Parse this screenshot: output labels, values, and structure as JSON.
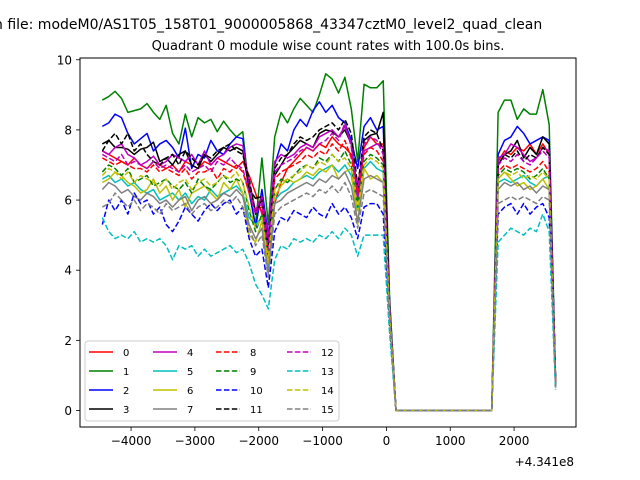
{
  "header_line": "n file: modeM0/AS1T05_158T01_9000005868_43347cztM0_level2_quad_clean",
  "chart_data": {
    "type": "line",
    "title": "Quadrant 0 module wise count rates with 100.0s bins.",
    "xlabel": "",
    "ylabel": "",
    "x_offset_label": "+4.341e8",
    "xlim": [
      -4800,
      2970
    ],
    "ylim": [
      -0.47,
      10.05
    ],
    "xticks": [
      -4000,
      -3000,
      -2000,
      -1000,
      0,
      1000,
      2000
    ],
    "xtick_labels": [
      "−4000",
      "−3000",
      "−2000",
      "−1000",
      "0",
      "1000",
      "2000"
    ],
    "yticks": [
      0,
      2,
      4,
      6,
      8,
      10
    ],
    "ytick_labels": [
      "0",
      "2",
      "4",
      "6",
      "8",
      "10"
    ],
    "grid": false,
    "legend_placement": "lower-left",
    "legend_columns": 4,
    "x": [
      -4450,
      -4350,
      -4250,
      -4150,
      -4050,
      -3950,
      -3850,
      -3750,
      -3650,
      -3550,
      -3450,
      -3350,
      -3250,
      -3150,
      -3050,
      -2950,
      -2850,
      -2750,
      -2650,
      -2550,
      -2450,
      -2350,
      -2250,
      -2150,
      -2050,
      -1950,
      -1850,
      -1750,
      -1650,
      -1550,
      -1450,
      -1350,
      -1250,
      -1150,
      -1050,
      -950,
      -850,
      -750,
      -650,
      -550,
      -450,
      -350,
      -250,
      -150,
      -50,
      50,
      150,
      1650,
      1750,
      1850,
      1950,
      2050,
      2150,
      2250,
      2350,
      2450,
      2550,
      2650
    ],
    "series": [
      {
        "name": "0",
        "color": "#ff0000",
        "dash": "solid",
        "values": [
          7.4,
          7.3,
          7.2,
          7.1,
          7.0,
          7.2,
          7.0,
          6.9,
          7.1,
          7.0,
          6.9,
          7.0,
          6.8,
          7.1,
          7.0,
          6.9,
          7.1,
          7.0,
          7.2,
          7.1,
          7.0,
          6.9,
          7.1,
          6.7,
          6.2,
          5.6,
          4.7,
          5.9,
          6.5,
          6.9,
          7.1,
          7.3,
          7.5,
          7.4,
          7.6,
          7.5,
          7.8,
          7.6,
          7.5,
          7.3,
          6.4,
          7.5,
          7.8,
          7.6,
          7.6,
          3.0,
          0.0,
          0.0,
          7.1,
          7.4,
          7.3,
          7.5,
          7.4,
          7.6,
          7.3,
          7.6,
          7.3,
          0.8
        ]
      },
      {
        "name": "1",
        "color": "#008000",
        "dash": "solid",
        "values": [
          8.85,
          8.95,
          9.1,
          8.9,
          8.5,
          8.55,
          8.6,
          8.75,
          8.5,
          8.3,
          8.7,
          7.9,
          7.6,
          8.45,
          7.8,
          8.35,
          8.2,
          8.3,
          7.95,
          8.25,
          8.0,
          7.8,
          7.95,
          6.2,
          5.3,
          7.2,
          5.3,
          7.8,
          8.5,
          8.2,
          8.6,
          8.9,
          8.7,
          8.5,
          9.0,
          9.6,
          9.45,
          9.05,
          9.5,
          8.6,
          7.1,
          9.3,
          9.2,
          9.2,
          9.4,
          3.2,
          0.0,
          0.0,
          8.5,
          8.85,
          8.85,
          8.3,
          8.6,
          8.45,
          8.45,
          9.15,
          8.15,
          0.9
        ]
      },
      {
        "name": "2",
        "color": "#0000ff",
        "dash": "solid",
        "values": [
          8.1,
          8.2,
          8.45,
          8.35,
          7.9,
          7.6,
          7.75,
          7.9,
          7.4,
          7.6,
          7.7,
          7.5,
          7.2,
          8.05,
          6.9,
          7.3,
          7.2,
          7.7,
          7.4,
          7.3,
          7.6,
          7.8,
          7.75,
          6.3,
          5.2,
          6.3,
          5.0,
          7.0,
          7.6,
          7.4,
          8.0,
          8.3,
          8.1,
          8.55,
          8.8,
          8.5,
          8.7,
          8.35,
          8.2,
          7.7,
          6.9,
          8.1,
          8.35,
          8.0,
          8.1,
          3.1,
          0.0,
          0.0,
          7.3,
          7.7,
          7.8,
          8.1,
          7.9,
          7.6,
          7.7,
          7.8,
          7.7,
          0.85
        ]
      },
      {
        "name": "3",
        "color": "#000000",
        "dash": "solid",
        "values": [
          7.6,
          7.7,
          7.5,
          7.5,
          7.45,
          7.3,
          7.45,
          7.5,
          7.65,
          7.1,
          7.2,
          7.0,
          7.3,
          7.4,
          7.0,
          6.9,
          7.3,
          7.1,
          7.3,
          7.5,
          7.4,
          7.5,
          7.4,
          6.3,
          6.05,
          6.1,
          4.8,
          6.7,
          7.0,
          7.3,
          7.5,
          7.7,
          7.6,
          7.5,
          7.9,
          8.0,
          7.95,
          7.8,
          8.0,
          7.6,
          6.2,
          7.7,
          7.85,
          7.9,
          8.5,
          3.0,
          0.0,
          0.0,
          7.0,
          7.3,
          7.4,
          7.7,
          7.2,
          7.5,
          7.3,
          7.8,
          7.6,
          0.8
        ]
      },
      {
        "name": "4",
        "color": "#bf00bf",
        "dash": "solid",
        "values": [
          7.4,
          7.3,
          7.5,
          7.6,
          7.3,
          7.2,
          7.0,
          7.1,
          7.25,
          7.0,
          7.1,
          7.3,
          7.2,
          7.1,
          7.3,
          7.0,
          7.4,
          7.0,
          7.2,
          7.3,
          7.5,
          7.6,
          7.55,
          6.5,
          5.7,
          6.1,
          4.9,
          7.1,
          7.3,
          7.2,
          7.3,
          7.5,
          7.6,
          7.5,
          7.8,
          7.9,
          8.0,
          7.8,
          8.1,
          7.6,
          6.0,
          7.4,
          7.5,
          7.6,
          7.5,
          2.9,
          0.0,
          0.0,
          7.2,
          7.3,
          7.6,
          7.5,
          7.3,
          7.1,
          7.2,
          7.5,
          7.4,
          0.8
        ]
      },
      {
        "name": "5",
        "color": "#00bfbf",
        "dash": "solid",
        "values": [
          6.6,
          6.7,
          6.5,
          6.6,
          6.4,
          6.5,
          6.3,
          6.2,
          6.3,
          6.0,
          6.1,
          6.2,
          6.0,
          6.2,
          5.9,
          6.1,
          6.0,
          6.3,
          6.1,
          6.2,
          6.3,
          6.4,
          6.2,
          5.5,
          5.3,
          5.5,
          4.1,
          6.0,
          6.2,
          6.3,
          6.5,
          6.6,
          6.7,
          6.6,
          6.8,
          6.9,
          7.0,
          6.8,
          7.0,
          6.7,
          5.7,
          6.9,
          7.1,
          6.9,
          6.8,
          2.8,
          0.0,
          0.0,
          6.5,
          6.6,
          6.5,
          6.6,
          6.7,
          6.5,
          6.4,
          6.6,
          6.7,
          0.75
        ]
      },
      {
        "name": "6",
        "color": "#bfbf00",
        "dash": "solid",
        "values": [
          6.5,
          6.6,
          6.8,
          6.7,
          6.5,
          6.4,
          6.2,
          6.3,
          6.6,
          6.2,
          6.4,
          6.0,
          6.3,
          5.8,
          6.2,
          6.3,
          6.4,
          6.2,
          6.0,
          6.5,
          6.3,
          6.6,
          6.2,
          5.0,
          4.8,
          5.4,
          4.2,
          6.1,
          6.4,
          6.6,
          6.5,
          6.6,
          6.8,
          6.7,
          6.9,
          6.8,
          7.0,
          6.6,
          6.8,
          6.9,
          5.3,
          6.9,
          6.6,
          6.7,
          6.5,
          2.8,
          0.0,
          0.0,
          6.6,
          6.8,
          6.6,
          6.4,
          6.5,
          6.3,
          6.4,
          6.6,
          6.3,
          0.7
        ]
      },
      {
        "name": "7",
        "color": "#808080",
        "dash": "solid",
        "values": [
          6.3,
          6.5,
          6.4,
          6.2,
          6.3,
          6.1,
          6.0,
          6.2,
          6.1,
          5.9,
          6.0,
          5.8,
          6.0,
          6.1,
          5.7,
          6.0,
          6.1,
          5.9,
          6.0,
          6.2,
          6.1,
          6.3,
          6.1,
          5.3,
          4.9,
          5.2,
          3.9,
          5.9,
          6.0,
          6.2,
          6.3,
          6.4,
          6.5,
          6.4,
          6.6,
          6.5,
          6.7,
          6.6,
          6.8,
          6.4,
          5.4,
          6.6,
          6.7,
          6.6,
          6.5,
          2.7,
          0.0,
          0.0,
          6.3,
          6.5,
          6.4,
          6.5,
          6.3,
          6.4,
          6.2,
          6.4,
          6.3,
          0.7
        ]
      },
      {
        "name": "8",
        "color": "#ff0000",
        "dash": "dash",
        "values": [
          7.2,
          7.1,
          7.0,
          7.1,
          7.0,
          6.9,
          6.9,
          6.8,
          7.0,
          6.8,
          6.9,
          6.8,
          6.7,
          6.9,
          6.6,
          6.8,
          6.8,
          6.9,
          6.6,
          6.9,
          6.8,
          7.0,
          6.8,
          6.2,
          5.7,
          5.8,
          4.3,
          6.6,
          6.8,
          6.9,
          7.0,
          7.1,
          7.3,
          7.2,
          7.4,
          7.3,
          7.6,
          7.4,
          7.7,
          7.2,
          6.2,
          7.3,
          7.5,
          7.4,
          7.1,
          2.9,
          0.0,
          0.0,
          6.8,
          7.0,
          6.9,
          7.0,
          6.9,
          6.8,
          6.9,
          7.1,
          6.8,
          0.75
        ]
      },
      {
        "name": "9",
        "color": "#008000",
        "dash": "dash",
        "values": [
          6.8,
          7.0,
          6.9,
          6.7,
          6.9,
          6.5,
          6.6,
          6.7,
          6.4,
          6.5,
          6.6,
          6.4,
          6.3,
          6.5,
          6.2,
          6.6,
          6.4,
          6.3,
          6.5,
          6.7,
          6.5,
          6.6,
          6.5,
          5.7,
          5.1,
          5.6,
          4.4,
          6.3,
          6.6,
          6.5,
          6.7,
          6.9,
          7.0,
          6.9,
          7.2,
          7.1,
          7.3,
          7.1,
          7.4,
          7.0,
          5.8,
          7.1,
          7.3,
          7.2,
          7.0,
          2.9,
          0.0,
          0.0,
          6.7,
          6.9,
          6.8,
          6.9,
          6.8,
          6.6,
          6.7,
          6.9,
          6.6,
          0.75
        ]
      },
      {
        "name": "10",
        "color": "#0000ff",
        "dash": "dash",
        "values": [
          5.3,
          6.0,
          5.7,
          6.0,
          5.6,
          6.2,
          5.9,
          6.0,
          5.6,
          5.8,
          5.3,
          5.1,
          5.4,
          5.8,
          5.6,
          5.4,
          5.7,
          5.9,
          5.7,
          5.9,
          6.0,
          5.6,
          5.8,
          4.9,
          4.4,
          4.6,
          3.5,
          5.1,
          5.5,
          5.4,
          5.7,
          5.6,
          5.5,
          5.8,
          5.6,
          5.5,
          5.9,
          5.6,
          5.8,
          5.5,
          4.9,
          5.8,
          5.9,
          5.9,
          5.6,
          2.4,
          0.0,
          0.0,
          5.6,
          5.8,
          5.9,
          5.6,
          5.9,
          5.6,
          5.8,
          5.9,
          5.5,
          0.65
        ]
      },
      {
        "name": "11",
        "color": "#000000",
        "dash": "dash",
        "values": [
          7.4,
          7.7,
          7.9,
          7.6,
          7.9,
          7.4,
          7.6,
          7.3,
          7.1,
          7.0,
          7.2,
          7.3,
          7.0,
          7.4,
          7.2,
          7.0,
          7.3,
          7.2,
          7.4,
          7.5,
          7.6,
          7.4,
          7.3,
          6.6,
          5.6,
          6.0,
          4.6,
          6.9,
          7.2,
          7.3,
          7.6,
          7.8,
          7.7,
          7.8,
          8.0,
          8.1,
          8.2,
          8.0,
          8.3,
          7.9,
          6.4,
          7.8,
          8.0,
          7.9,
          7.4,
          2.9,
          0.0,
          0.0,
          7.0,
          7.3,
          7.2,
          7.4,
          7.1,
          7.3,
          7.2,
          7.5,
          7.3,
          0.8
        ]
      },
      {
        "name": "12",
        "color": "#bf00bf",
        "dash": "dash",
        "values": [
          7.3,
          7.2,
          7.1,
          7.3,
          7.0,
          7.1,
          7.0,
          6.9,
          7.1,
          6.9,
          7.0,
          6.9,
          6.8,
          7.0,
          6.8,
          6.9,
          7.0,
          6.8,
          7.1,
          7.0,
          7.2,
          7.0,
          6.9,
          6.2,
          5.6,
          5.9,
          4.6,
          6.8,
          7.0,
          7.1,
          7.2,
          7.4,
          7.5,
          7.4,
          7.6,
          7.7,
          7.9,
          7.7,
          8.2,
          7.5,
          6.3,
          7.6,
          7.8,
          7.7,
          7.3,
          2.9,
          0.0,
          0.0,
          7.0,
          7.2,
          7.1,
          7.3,
          7.1,
          7.0,
          7.2,
          7.4,
          7.2,
          0.8
        ]
      },
      {
        "name": "13",
        "color": "#00bfbf",
        "dash": "dash",
        "values": [
          5.5,
          5.1,
          4.9,
          5.0,
          4.9,
          5.1,
          4.8,
          4.9,
          4.8,
          4.9,
          4.7,
          4.3,
          4.7,
          4.6,
          4.7,
          4.4,
          4.6,
          4.4,
          4.5,
          4.6,
          4.7,
          4.5,
          4.6,
          4.2,
          3.6,
          3.3,
          2.9,
          4.3,
          4.7,
          4.6,
          4.9,
          4.8,
          4.9,
          4.8,
          5.0,
          4.9,
          5.1,
          4.9,
          5.2,
          5.0,
          4.4,
          5.0,
          5.0,
          5.0,
          5.0,
          2.2,
          0.0,
          0.0,
          4.8,
          5.0,
          5.2,
          5.1,
          5.0,
          5.2,
          5.1,
          5.6,
          5.1,
          0.6
        ]
      },
      {
        "name": "14",
        "color": "#bfbf00",
        "dash": "dash",
        "values": [
          6.7,
          6.9,
          6.8,
          6.6,
          6.8,
          6.5,
          6.7,
          6.6,
          6.5,
          6.4,
          6.6,
          6.3,
          6.5,
          6.6,
          6.3,
          6.5,
          6.6,
          6.4,
          6.5,
          6.7,
          6.6,
          6.8,
          6.5,
          5.8,
          5.2,
          5.5,
          4.3,
          6.3,
          6.5,
          6.6,
          6.7,
          6.8,
          7.0,
          6.9,
          7.1,
          7.0,
          7.3,
          7.1,
          7.2,
          6.9,
          5.7,
          7.0,
          7.2,
          7.1,
          6.9,
          2.8,
          0.0,
          0.0,
          6.6,
          6.8,
          6.7,
          6.8,
          6.6,
          6.7,
          6.6,
          6.8,
          6.6,
          0.75
        ]
      },
      {
        "name": "15",
        "color": "#808080",
        "dash": "dash",
        "values": [
          5.8,
          5.9,
          6.2,
          6.0,
          5.8,
          6.0,
          5.7,
          5.9,
          5.8,
          5.6,
          5.9,
          5.7,
          5.8,
          5.9,
          5.6,
          5.8,
          5.9,
          5.7,
          5.8,
          6.0,
          5.9,
          6.1,
          5.8,
          5.2,
          4.7,
          5.0,
          3.8,
          5.6,
          5.8,
          5.9,
          6.0,
          6.1,
          6.2,
          6.1,
          6.3,
          6.2,
          6.4,
          6.2,
          6.5,
          6.1,
          5.2,
          6.2,
          6.3,
          6.2,
          6.1,
          2.6,
          0.0,
          0.0,
          5.9,
          6.0,
          6.1,
          6.0,
          6.1,
          6.0,
          5.9,
          6.1,
          6.0,
          0.65
        ]
      }
    ]
  }
}
